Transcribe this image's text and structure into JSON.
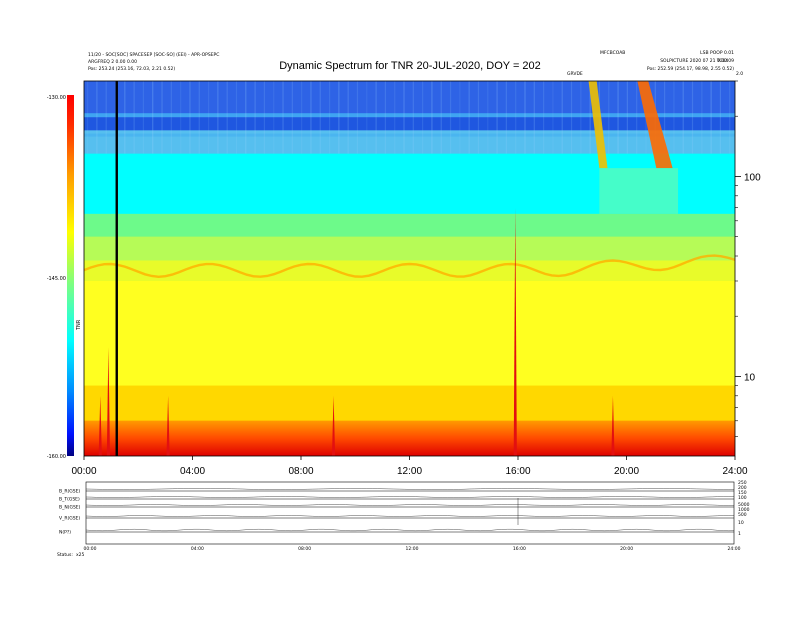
{
  "header": {
    "title": "Dynamic Spectrum for TNR 20-JUL-2020, DOY = 202",
    "left_info": [
      "11/20 - SOC[SOC] SPACESEP [SOC-SO] (EEI) - APR-OPSEPC",
      "ARGFREQ 2 0.00 0.00",
      "Pos: 253.24 (253.16, 72.03, 2.21 0.52)"
    ],
    "right_info": [
      "LSB POOP 0.01",
      "SOLPICTURE 2020 07 21 TC0409",
      "Pos: 252.59 (254.17, 98.98, 2.55 0.52)"
    ],
    "mid_right_info": "MFCBCOAB",
    "small_right": [
      "GRVDE",
      "2.0"
    ],
    "corner_right": "0.00"
  },
  "colorbar": {
    "label": "TNR",
    "ticks": [
      "-130.00",
      "-145.00",
      "-160.00"
    ],
    "colors": [
      "#00007f",
      "#0000ff",
      "#007fff",
      "#00ffff",
      "#7fff7f",
      "#ffff00",
      "#ff7f00",
      "#ff0000",
      "#7f0000"
    ]
  },
  "chart_data": {
    "type": "heatmap",
    "title": "Dynamic Spectrum for TNR 20-JUL-2020, DOY = 202",
    "x_ticks": [
      "00:00",
      "04:00",
      "08:00",
      "12:00",
      "16:00",
      "20:00",
      "24:00"
    ],
    "y_ticks": [
      "100",
      "10"
    ],
    "y_scale": "log",
    "ylim": [
      4,
      300
    ],
    "xlim_hours": [
      0,
      24
    ],
    "color_range": [
      -160,
      -130
    ],
    "bands": [
      {
        "from_khz": 300,
        "to_khz": 200,
        "color": "#2e63e6"
      },
      {
        "from_khz": 200,
        "to_khz": 170,
        "color": "#1f57e0"
      },
      {
        "from_khz": 170,
        "to_khz": 130,
        "color": "#56bfef"
      },
      {
        "from_khz": 130,
        "to_khz": 65,
        "color": "#00ffff"
      },
      {
        "from_khz": 65,
        "to_khz": 50,
        "color": "#6dfa8a"
      },
      {
        "from_khz": 50,
        "to_khz": 38,
        "color": "#b6fb57"
      },
      {
        "from_khz": 38,
        "to_khz": 30,
        "color": "#e8fb2a"
      },
      {
        "from_khz": 30,
        "to_khz": 9,
        "color": "#ffff20"
      },
      {
        "from_khz": 9,
        "to_khz": 6,
        "color": "#ffd800"
      },
      {
        "from_khz": 6,
        "to_khz": 5,
        "color": "#ff8c00"
      },
      {
        "from_khz": 5,
        "to_khz": 4,
        "color": "#ee1010"
      }
    ],
    "bursts_hours": [
      0.6,
      0.9,
      3.1,
      9.2,
      15.9,
      19.5
    ],
    "data_gap_hour": 1.2
  },
  "bottom_panel": {
    "row_labels": [
      "B_R(GSE)",
      "B_T(GSE)",
      "B_N(GSE)",
      "V_R(GSE)",
      "N(P?)"
    ],
    "right_ticks": [
      "250",
      "200",
      "150",
      "100",
      "5000",
      "1000",
      "500",
      "10",
      "1"
    ],
    "x_ticks": [
      "00:00",
      "04:00",
      "08:00",
      "12:00",
      "16:00",
      "20:00",
      "24:00"
    ],
    "status_label": "Status:",
    "status_value": "x25"
  }
}
